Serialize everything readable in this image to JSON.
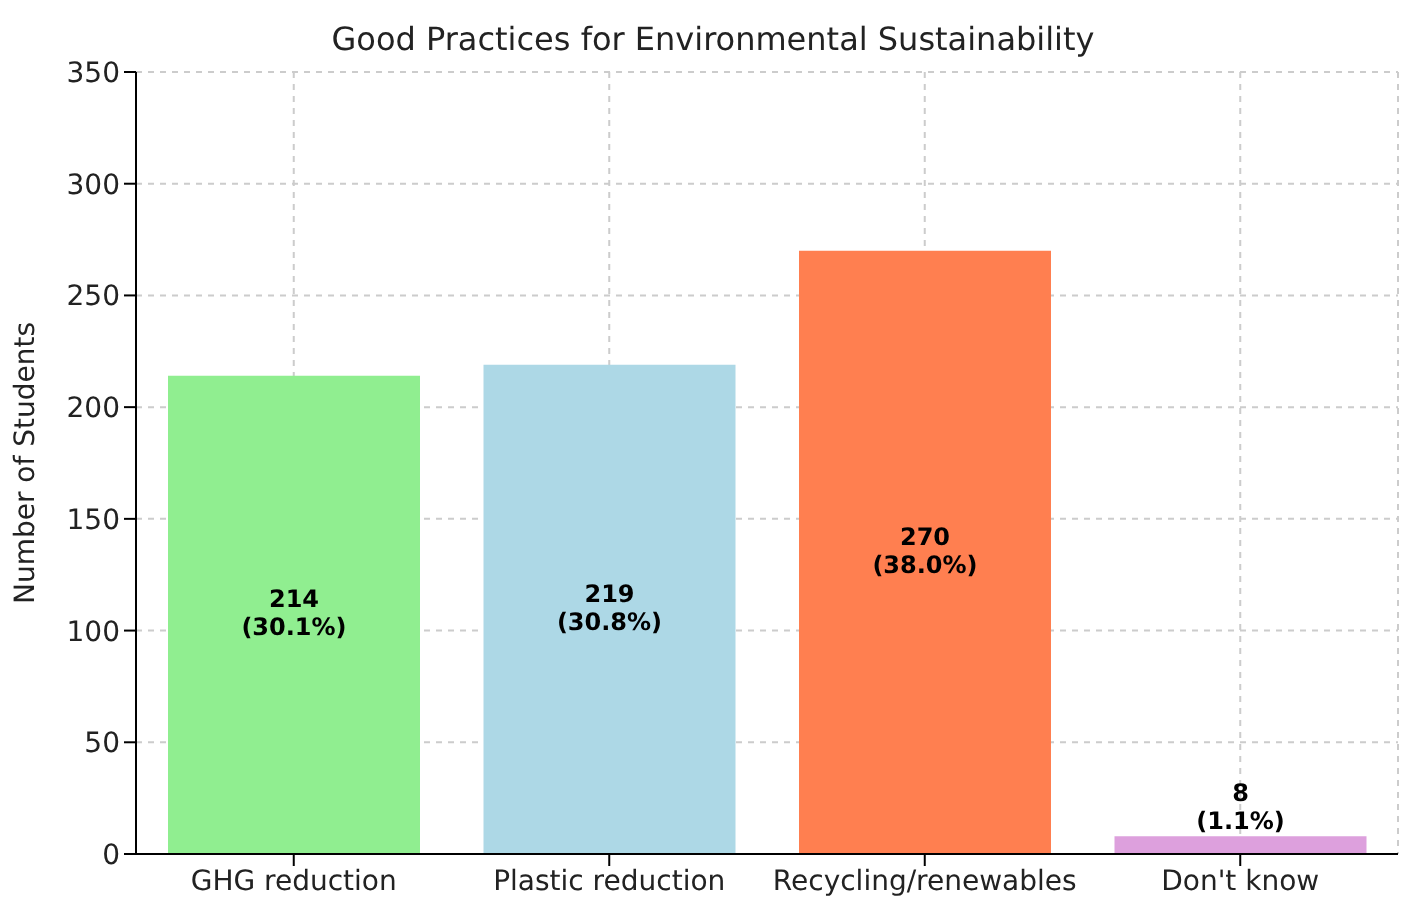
{
  "chart_data": {
    "type": "bar",
    "title": "Good Practices for Environmental Sustainability",
    "ylabel": "Number of Students",
    "categories": [
      "GHG reduction",
      "Plastic reduction",
      "Recycling/renewables",
      "Don't know"
    ],
    "values": [
      214,
      219,
      270,
      8
    ],
    "colors": [
      "#90ee90",
      "#add8e6",
      "#ff7f50",
      "#dda0dd"
    ],
    "value_labels": [
      "214 (30.1%)",
      "219 (30.8%)",
      "270 (38.0%)",
      "8 (1.1%)"
    ],
    "ylim": [
      0,
      350
    ],
    "yticks": [
      0,
      50,
      100,
      150,
      200,
      250,
      300,
      350
    ],
    "grid": true
  }
}
